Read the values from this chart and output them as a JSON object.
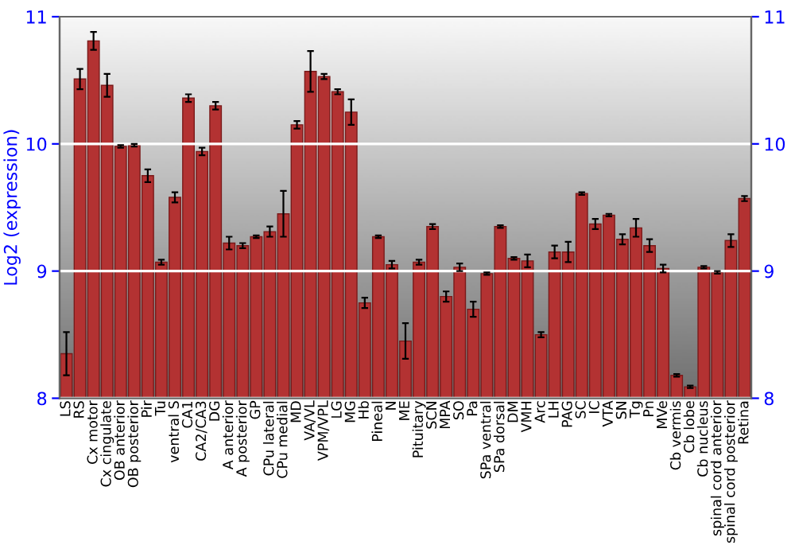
{
  "chart_data": {
    "type": "bar",
    "ylabel": "Log2 (expression)",
    "categories": [
      "LS",
      "RS",
      "Cx motor",
      "Cx cingulate",
      "OB anterior",
      "OB posterior",
      "Pir",
      "Tu",
      "ventral S",
      "CA1",
      "CA2/CA3",
      "DG",
      "A anterior",
      "A posterior",
      "GP",
      "CPu lateral",
      "CPu medial",
      "MD",
      "VA/VL",
      "VPM/VPL",
      "LG",
      "MG",
      "Hb",
      "Pineal",
      "N",
      "ME",
      "Pituitary",
      "SCN",
      "MPA",
      "SO",
      "Pa",
      "SPa ventral",
      "SPa dorsal",
      "DM",
      "VMH",
      "Arc",
      "LH",
      "PAG",
      "SC",
      "IC",
      "VTA",
      "SN",
      "Tg",
      "Pn",
      "MVe",
      "Cb vermis",
      "Cb lobe",
      "Cb nucleus",
      "spinal cord anterior",
      "spinal cord posterior",
      "Retina"
    ],
    "values": [
      8.35,
      10.51,
      10.81,
      10.46,
      9.98,
      9.99,
      9.75,
      9.07,
      9.58,
      10.36,
      9.94,
      10.3,
      9.22,
      9.2,
      9.27,
      9.31,
      9.45,
      10.15,
      10.57,
      10.53,
      10.41,
      10.25,
      8.75,
      9.27,
      9.05,
      8.45,
      9.07,
      9.35,
      8.8,
      9.03,
      8.7,
      8.98,
      9.35,
      9.1,
      9.08,
      8.5,
      9.15,
      9.15,
      9.61,
      9.37,
      9.44,
      9.25,
      9.34,
      9.2,
      9.02,
      8.18,
      8.09,
      9.03,
      8.99,
      9.24,
      9.57
    ],
    "errors": [
      0.17,
      0.08,
      0.07,
      0.09,
      0.01,
      0.01,
      0.05,
      0.02,
      0.04,
      0.03,
      0.03,
      0.03,
      0.05,
      0.02,
      0.01,
      0.04,
      0.18,
      0.03,
      0.16,
      0.02,
      0.02,
      0.1,
      0.04,
      0.01,
      0.03,
      0.14,
      0.02,
      0.02,
      0.04,
      0.03,
      0.06,
      0.01,
      0.01,
      0.01,
      0.05,
      0.02,
      0.05,
      0.08,
      0.01,
      0.04,
      0.01,
      0.04,
      0.07,
      0.05,
      0.03,
      0.01,
      0.01,
      0.01,
      0.01,
      0.05,
      0.02
    ],
    "color": "#b33232",
    "ylim": [
      8,
      11
    ],
    "yticks": [
      8,
      9,
      10,
      11
    ],
    "y2lim": [
      8,
      11
    ],
    "y2ticks": [
      8,
      9,
      10,
      11
    ],
    "grid": "y"
  }
}
